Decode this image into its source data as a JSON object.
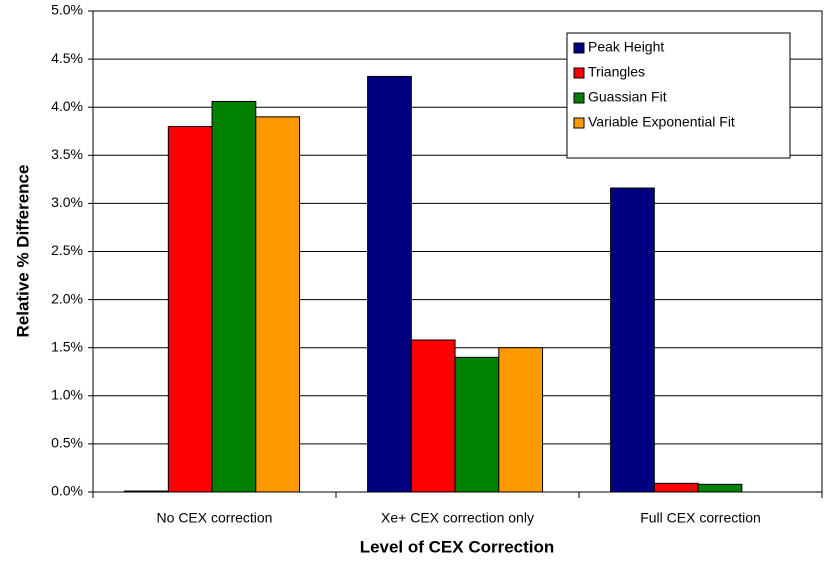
{
  "chart_data": {
    "type": "bar",
    "x_label": "Level of CEX Correction",
    "y_label": "Relative % Difference",
    "categories": [
      "No CEX correction",
      "Xe+ CEX correction only",
      "Full CEX correction"
    ],
    "series": [
      {
        "name": "Peak Height",
        "color": "#000080",
        "values": [
          0.01,
          4.32,
          3.16
        ]
      },
      {
        "name": "Triangles",
        "color": "#ff0000",
        "values": [
          3.8,
          1.58,
          0.09
        ]
      },
      {
        "name": "Guassian Fit",
        "color": "#008000",
        "values": [
          4.06,
          1.4,
          0.08
        ]
      },
      {
        "name": "Variable Exponential Fit",
        "color": "#ff9900",
        "values": [
          3.9,
          1.5,
          0
        ]
      }
    ],
    "ylim": [
      0,
      5
    ],
    "yticks": [
      {
        "value": 0,
        "label": "0.0%"
      },
      {
        "value": 0.5,
        "label": "0.5%"
      },
      {
        "value": 1,
        "label": "1.0%"
      },
      {
        "value": 1.5,
        "label": "1.5%"
      },
      {
        "value": 2,
        "label": "2.0%"
      },
      {
        "value": 2.5,
        "label": "2.5%"
      },
      {
        "value": 3,
        "label": "3.0%"
      },
      {
        "value": 3.5,
        "label": "3.5%"
      },
      {
        "value": 4,
        "label": "4.0%"
      },
      {
        "value": 4.5,
        "label": "4.5%"
      },
      {
        "value": 5,
        "label": "5.0%"
      }
    ],
    "grid": true,
    "legend": "upper-right"
  }
}
